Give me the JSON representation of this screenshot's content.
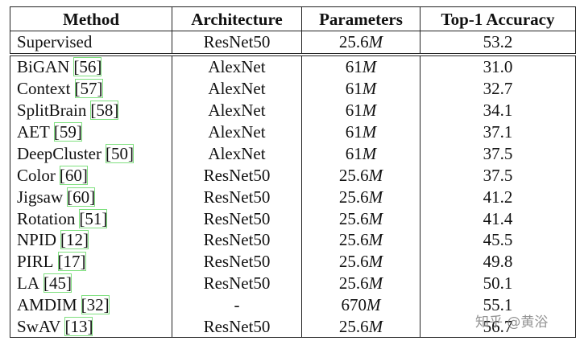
{
  "table": {
    "header": [
      "Method",
      "Architecture",
      "Parameters",
      "Top-1 Accuracy"
    ],
    "rows": [
      {
        "method": "Supervised",
        "architecture": "ResNet50",
        "params": {
          "value": "25.6",
          "unit": "M"
        },
        "accuracy": "53.2"
      },
      {
        "method": "BiGAN",
        "ref": "[56]",
        "architecture": "AlexNet",
        "params": {
          "value": "61",
          "unit": "M"
        },
        "accuracy": "31.0"
      },
      {
        "method": "Context",
        "ref": "[57]",
        "architecture": "AlexNet",
        "params": {
          "value": "61",
          "unit": "M"
        },
        "accuracy": "32.7"
      },
      {
        "method": "SplitBrain",
        "ref": "[58]",
        "architecture": "AlexNet",
        "params": {
          "value": "61",
          "unit": "M"
        },
        "accuracy": "34.1"
      },
      {
        "method": "AET",
        "ref": "[59]",
        "architecture": "AlexNet",
        "params": {
          "value": "61",
          "unit": "M"
        },
        "accuracy": "37.1"
      },
      {
        "method": "DeepCluster",
        "ref": "[50]",
        "architecture": "AlexNet",
        "params": {
          "value": "61",
          "unit": "M"
        },
        "accuracy": "37.5"
      },
      {
        "method": "Color",
        "ref": "[60]",
        "architecture": "ResNet50",
        "params": {
          "value": "25.6",
          "unit": "M"
        },
        "accuracy": "37.5"
      },
      {
        "method": "Jigsaw",
        "ref": "[60]",
        "architecture": "ResNet50",
        "params": {
          "value": "25.6",
          "unit": "M"
        },
        "accuracy": "41.2"
      },
      {
        "method": "Rotation",
        "ref": "[51]",
        "architecture": "ResNet50",
        "params": {
          "value": "25.6",
          "unit": "M"
        },
        "accuracy": "41.4"
      },
      {
        "method": "NPID",
        "ref": "[12]",
        "architecture": "ResNet50",
        "params": {
          "value": "25.6",
          "unit": "M"
        },
        "accuracy": "45.5"
      },
      {
        "method": "PIRL",
        "ref": "[17]",
        "architecture": "ResNet50",
        "params": {
          "value": "25.6",
          "unit": "M"
        },
        "accuracy": "49.8"
      },
      {
        "method": "LA",
        "ref": "[45]",
        "architecture": "ResNet50",
        "params": {
          "value": "25.6",
          "unit": "M"
        },
        "accuracy": "50.1"
      },
      {
        "method": "AMDIM",
        "ref": "[32]",
        "architecture": "-",
        "params": {
          "value": "670",
          "unit": "M"
        },
        "accuracy": "55.1"
      },
      {
        "method": "SwAV",
        "ref": "[13]",
        "architecture": "ResNet50",
        "params": {
          "value": "25.6",
          "unit": "M"
        },
        "accuracy": "56.7"
      }
    ]
  },
  "watermark": "知乎 @黄浴"
}
